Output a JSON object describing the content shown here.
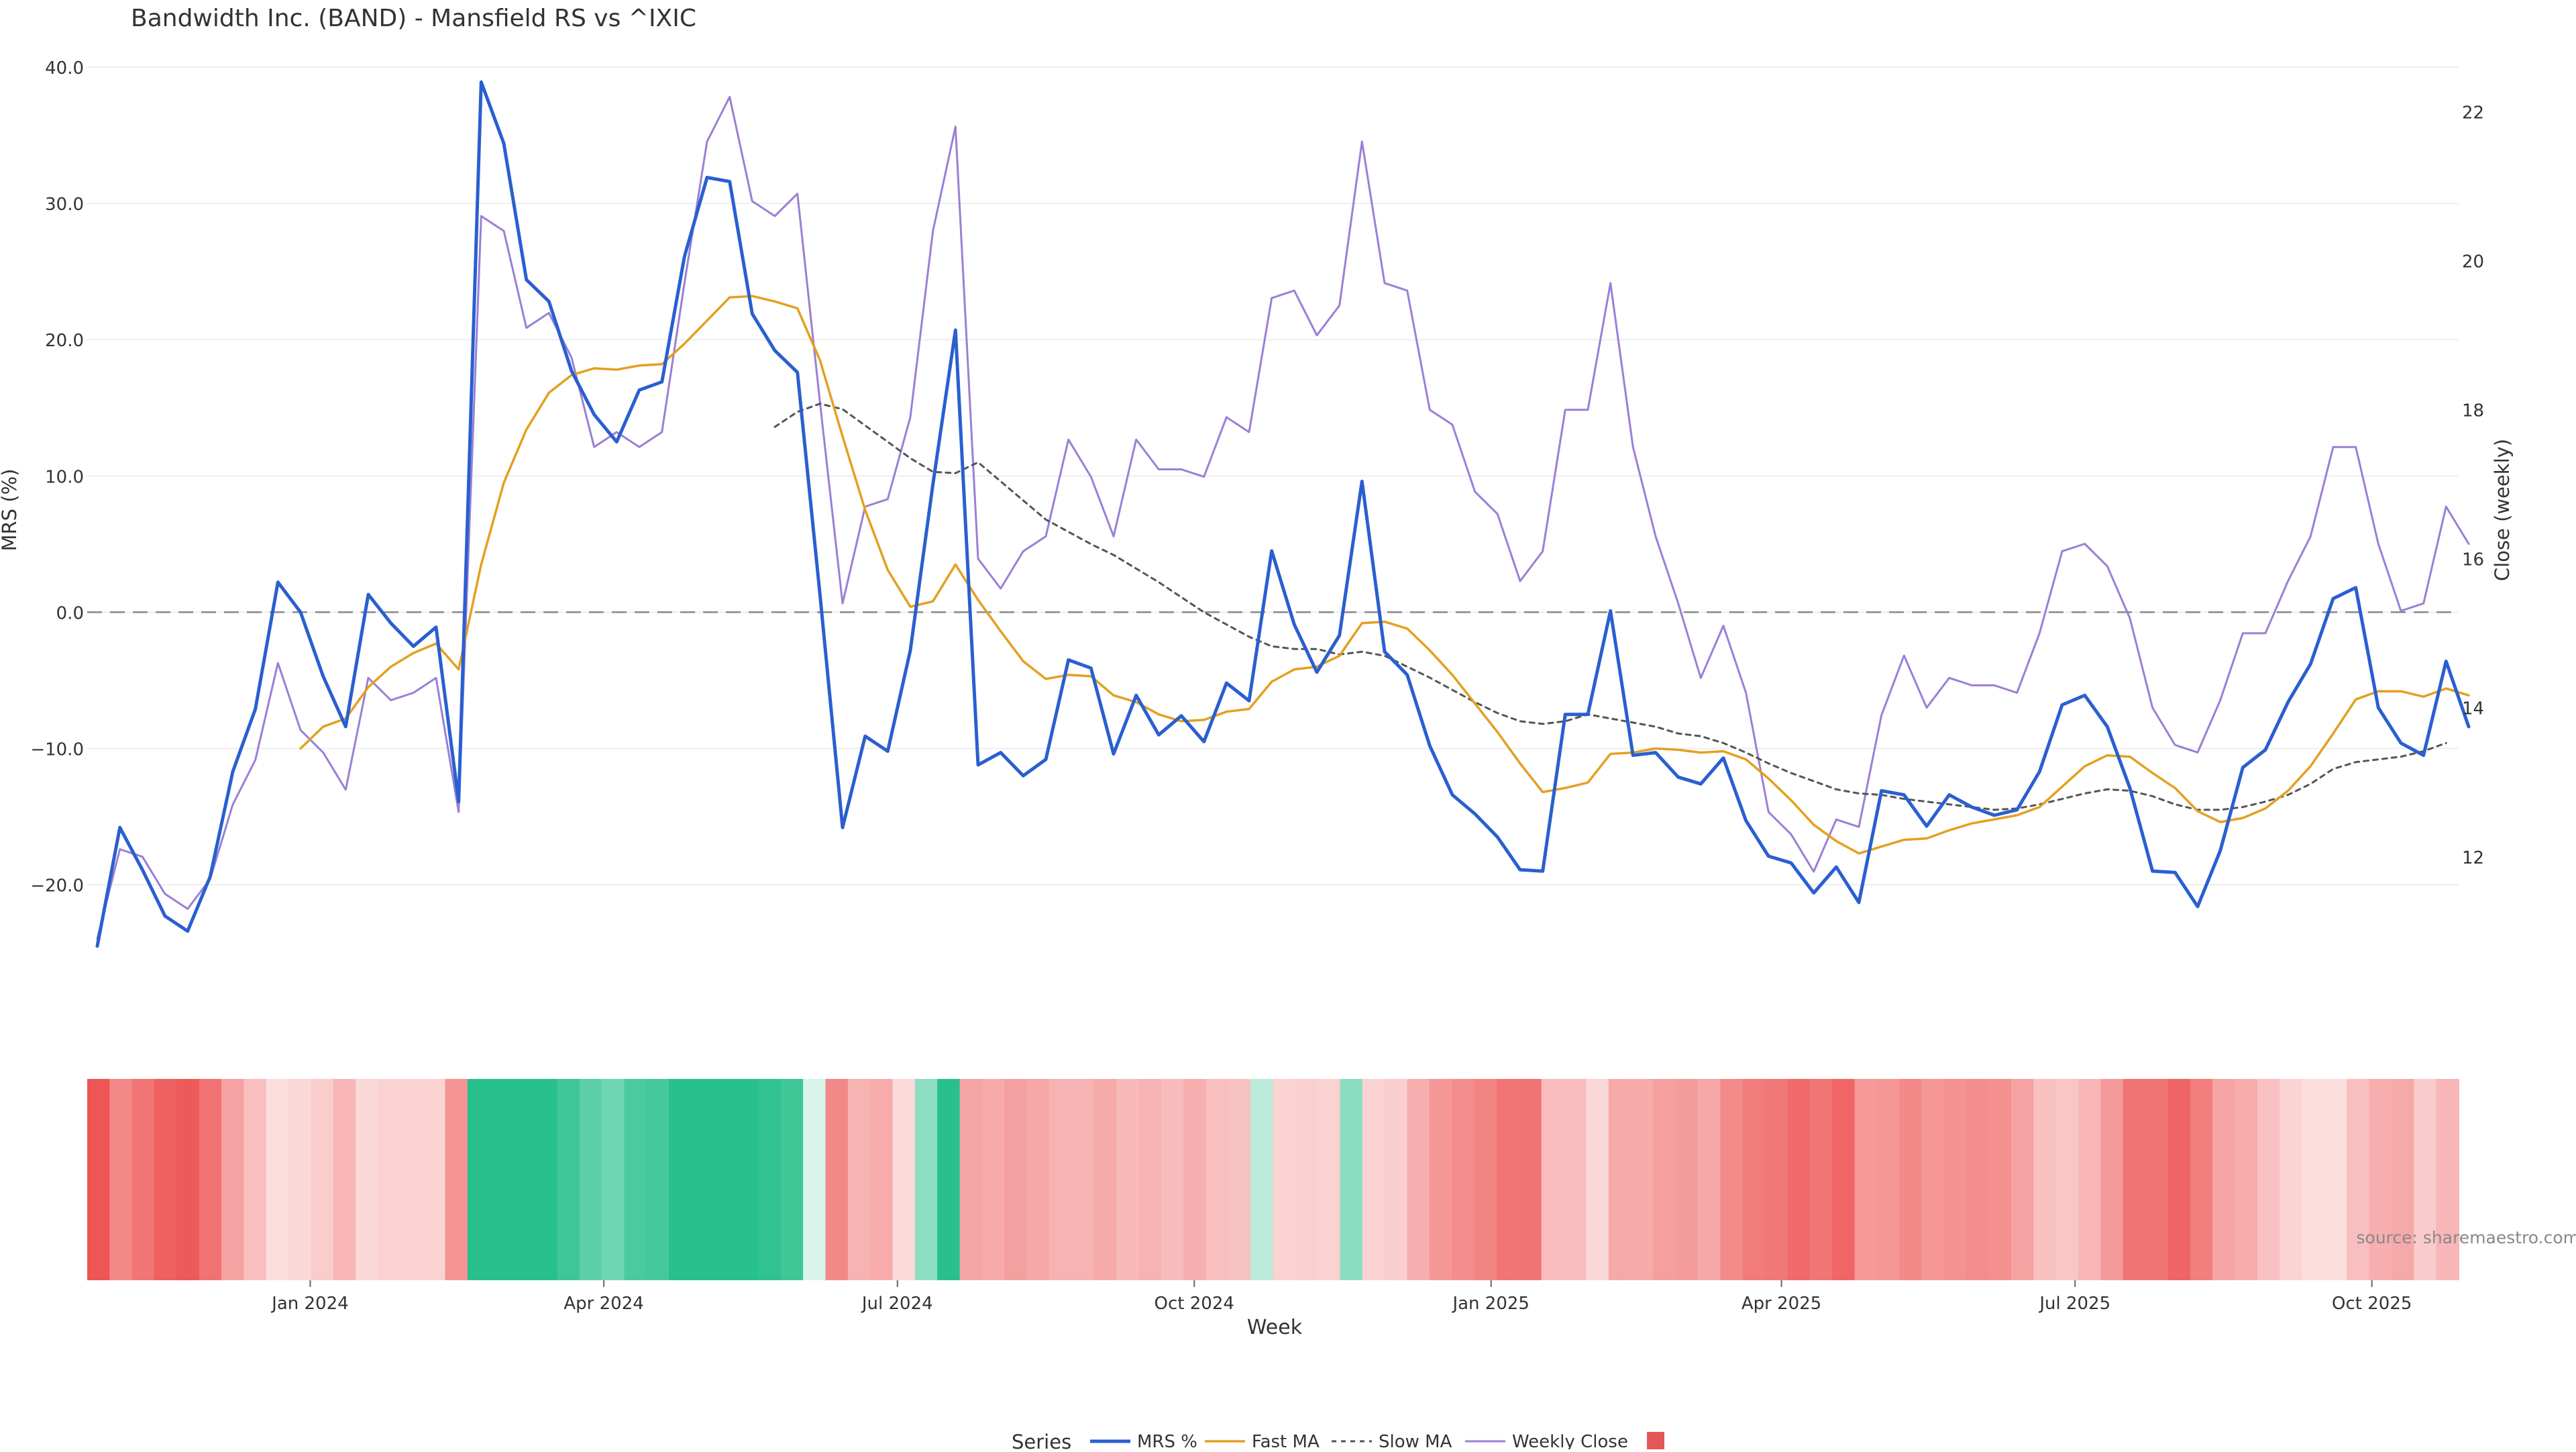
{
  "title": "Bandwidth Inc. (BAND) - Mansfield RS vs ^IXIC",
  "source": "source: sharemaestro.com",
  "colors": {
    "mrs": "#2a5fd0",
    "fast": "#e3a020",
    "slow": "#555555",
    "close": "#9b7fd6",
    "zero_line": "#888888",
    "grid": "#eeeeee",
    "heat_positive": "#28c08c",
    "heat_negative": "#ee5555",
    "legend_swatch": "#e45757"
  },
  "chart_data": {
    "type": "line",
    "title": "Bandwidth Inc. (BAND) - Mansfield RS vs ^IXIC",
    "xlabel": "Week",
    "ylabel_left": "MRS (%)",
    "ylabel_right": "Close (weekly)",
    "ylim_left": [
      -24.5,
      40
    ],
    "ylim_right": [
      10.8,
      22.6
    ],
    "x_start": "2023-10-27",
    "x_tick_labels": [
      {
        "date": "2024-01-01",
        "label": "Jan 2024"
      },
      {
        "date": "2024-04-01",
        "label": "Apr 2024"
      },
      {
        "date": "2024-07-01",
        "label": "Jul 2024"
      },
      {
        "date": "2024-10-01",
        "label": "Oct 2024"
      },
      {
        "date": "2025-01-01",
        "label": "Jan 2025"
      },
      {
        "date": "2025-04-01",
        "label": "Apr 2025"
      },
      {
        "date": "2025-07-01",
        "label": "Jul 2025"
      },
      {
        "date": "2025-10-01",
        "label": "Oct 2025"
      }
    ],
    "y_left_ticks": [
      "40.0",
      "30.0",
      "20.0",
      "10.0",
      "0.0",
      "−10.0",
      "−20.0"
    ],
    "y_left_tick_values": [
      40,
      30,
      20,
      10,
      0,
      -10,
      -20
    ],
    "y_right_ticks": [
      "22",
      "20",
      "18",
      "16",
      "14",
      "12"
    ],
    "y_right_tick_values": [
      22,
      20,
      18,
      16,
      14,
      12
    ],
    "series": [
      {
        "name": "MRS %",
        "values": [
          -24.5,
          -15.8,
          -18.9,
          -22.3,
          -23.4,
          -19.4,
          -11.7,
          -7.1,
          2.2,
          0,
          -4.7,
          -8.4,
          1.3,
          -0.8,
          -2.5,
          -1.1,
          -13.9,
          38.9,
          34.4,
          24.4,
          22.8,
          17.7,
          14.5,
          12.5,
          16.3,
          16.9,
          26.1,
          31.9,
          31.6,
          21.9,
          19.2,
          17.6,
          1.3,
          -15.8,
          -9.1,
          -10.2,
          -2.8,
          9.4,
          20.7,
          -11.2,
          -10.3,
          -12,
          -10.8,
          -3.5,
          -4.1,
          -10.4,
          -6.1,
          -9,
          -7.6,
          -9.5,
          -5.2,
          -6.5,
          4.5,
          -0.9,
          -4.4,
          -1.7,
          9.6,
          -2.9,
          -4.6,
          -9.8,
          -13.4,
          -14.8,
          -16.5,
          -18.9,
          -19,
          -7.5,
          -7.5,
          0.1,
          -10.5,
          -10.3,
          -12.1,
          -12.6,
          -10.7,
          -15.3,
          -17.9,
          -18.4,
          -20.6,
          -18.7,
          -21.3,
          -13.1,
          -13.4,
          -15.7,
          -13.4,
          -14.3,
          -14.9,
          -14.5,
          -11.7,
          -6.8,
          -6.1,
          -8.4,
          -12.9,
          -19,
          -19.1,
          -21.6,
          -17.5,
          -11.4,
          -10.1,
          -6.6,
          -3.8,
          1,
          1.8,
          -7,
          -9.6,
          -10.5,
          -3.6,
          -8.4
        ]
      },
      {
        "name": "Fast MA",
        "start_index": 9,
        "values": [
          -10,
          -8.4,
          -7.8,
          -5.5,
          -4,
          -3,
          -2.3,
          -4.2,
          3.5,
          9.5,
          13.4,
          16.1,
          17.4,
          17.9,
          17.8,
          18.1,
          18.2,
          19.7,
          21.4,
          23.1,
          23.2,
          22.8,
          22.3,
          18.5,
          12.9,
          7.5,
          3.1,
          0.4,
          0.8,
          3.5,
          0.9,
          -1.4,
          -3.6,
          -4.9,
          -4.6,
          -4.7,
          -6.1,
          -6.6,
          -7.5,
          -8,
          -7.9,
          -7.3,
          -7.1,
          -5.1,
          -4.2,
          -4,
          -3.2,
          -0.8,
          -0.7,
          -1.2,
          -2.8,
          -4.6,
          -6.7,
          -8.8,
          -11.1,
          -13.2,
          -12.9,
          -12.5,
          -10.4,
          -10.3,
          -10,
          -10.1,
          -10.3,
          -10.2,
          -10.8,
          -12.2,
          -13.8,
          -15.6,
          -16.8,
          -17.7,
          -17.2,
          -16.7,
          -16.6,
          -16,
          -15.5,
          -15.2,
          -14.9,
          -14.3,
          -12.8,
          -11.3,
          -10.5,
          -10.6,
          -11.8,
          -12.9,
          -14.6,
          -15.4,
          -15.1,
          -14.4,
          -13.1,
          -11.3,
          -8.9,
          -6.4,
          -5.8,
          -5.8,
          -6.2,
          -5.6,
          -6.1
        ]
      },
      {
        "name": "Slow MA",
        "start_index": 30,
        "values": [
          13.6,
          14.7,
          15.3,
          14.9,
          13.7,
          12.5,
          11.3,
          10.3,
          10.2,
          11,
          9.6,
          8.2,
          6.8,
          5.9,
          5,
          4.2,
          3.2,
          2.2,
          1.1,
          0,
          -0.9,
          -1.8,
          -2.5,
          -2.7,
          -2.7,
          -3.1,
          -2.9,
          -3.2,
          -4,
          -4.8,
          -5.7,
          -6.6,
          -7.4,
          -8,
          -8.2,
          -8,
          -7.5,
          -7.8,
          -8.1,
          -8.4,
          -8.9,
          -9.1,
          -9.6,
          -10.3,
          -11.1,
          -11.8,
          -12.4,
          -13,
          -13.3,
          -13.4,
          -13.7,
          -13.9,
          -14.1,
          -14.3,
          -14.5,
          -14.4,
          -14.1,
          -13.7,
          -13.3,
          -13,
          -13.1,
          -13.5,
          -14.1,
          -14.5,
          -14.5,
          -14.3,
          -13.9,
          -13.4,
          -12.6,
          -11.5,
          -11,
          -10.8,
          -10.6,
          -10.2,
          -9.6
        ]
      },
      {
        "name": "Weekly Close",
        "axis": "right",
        "values": [
          10.9,
          12.1,
          12,
          11.5,
          11.3,
          11.7,
          12.7,
          13.3,
          14.6,
          13.7,
          13.4,
          12.9,
          14.4,
          14.1,
          14.2,
          14.4,
          12.6,
          20.6,
          20.4,
          19.1,
          19.3,
          18.7,
          17.5,
          17.7,
          17.5,
          17.7,
          19.7,
          21.6,
          22.2,
          20.8,
          20.6,
          20.9,
          18.1,
          15.4,
          16.7,
          16.8,
          17.9,
          20.4,
          21.8,
          16,
          15.6,
          16.1,
          16.3,
          17.6,
          17.1,
          16.3,
          17.6,
          17.2,
          17.2,
          17.1,
          17.9,
          17.7,
          19.5,
          19.6,
          19,
          19.4,
          21.6,
          19.7,
          19.6,
          18,
          17.8,
          16.9,
          16.6,
          15.7,
          16.1,
          18,
          18,
          19.7,
          17.5,
          16.3,
          15.4,
          14.4,
          15.1,
          14.2,
          12.6,
          12.3,
          11.8,
          12.5,
          12.4,
          13.9,
          14.7,
          14,
          14.4,
          14.3,
          14.3,
          14.2,
          15,
          16.1,
          16.2,
          15.9,
          15.2,
          14,
          13.5,
          13.4,
          14.1,
          15,
          15,
          15.7,
          16.3,
          17.5,
          17.5,
          16.2,
          15.3,
          15.4,
          16.7,
          16.2
        ]
      },
      {
        "name": "",
        "type": "heatmap",
        "values": [
          -24.5,
          -15.8,
          -18.9,
          -22.3,
          -23.4,
          -19.4,
          -11.7,
          -7.1,
          -2,
          -3,
          -4.7,
          -8.4,
          -3,
          -4,
          -4,
          -4,
          -13.9,
          38.9,
          34.4,
          24.4,
          22.8,
          17.7,
          14.5,
          12.5,
          16.3,
          16.9,
          26.1,
          31.9,
          31.6,
          21.9,
          19.2,
          17.6,
          1.3,
          -15.8,
          -9.1,
          -10.2,
          -2.8,
          9.4,
          20.7,
          -11.2,
          -10.3,
          -12,
          -10.8,
          -9,
          -9,
          -10.4,
          -8,
          -9,
          -7.6,
          -9.5,
          -7,
          -6.5,
          4.5,
          -4,
          -4.4,
          -4,
          9.6,
          -4,
          -4.6,
          -9.8,
          -13.4,
          -14.8,
          -16.5,
          -18.9,
          -19,
          -7.5,
          -7.5,
          -3,
          -10.5,
          -10.3,
          -12.1,
          -12.6,
          -10.7,
          -15.3,
          -17.9,
          -18.4,
          -20.6,
          -18.7,
          -21.3,
          -13.1,
          -13.4,
          -15.7,
          -13.4,
          -14.3,
          -14.9,
          -14.5,
          -11.7,
          -6.8,
          -6.1,
          -8.4,
          -12.9,
          -19,
          -19.1,
          -21.6,
          -17.5,
          -11.4,
          -10.1,
          -6.6,
          -3.8,
          -2,
          -2,
          -7,
          -9.6,
          -10.5,
          -5,
          -8.4
        ]
      }
    ],
    "grid": true,
    "legend": {
      "title": "Series",
      "placement": "bottom-center",
      "items": [
        "MRS %",
        "Fast MA",
        "Slow MA",
        "Weekly Close",
        ""
      ]
    }
  }
}
